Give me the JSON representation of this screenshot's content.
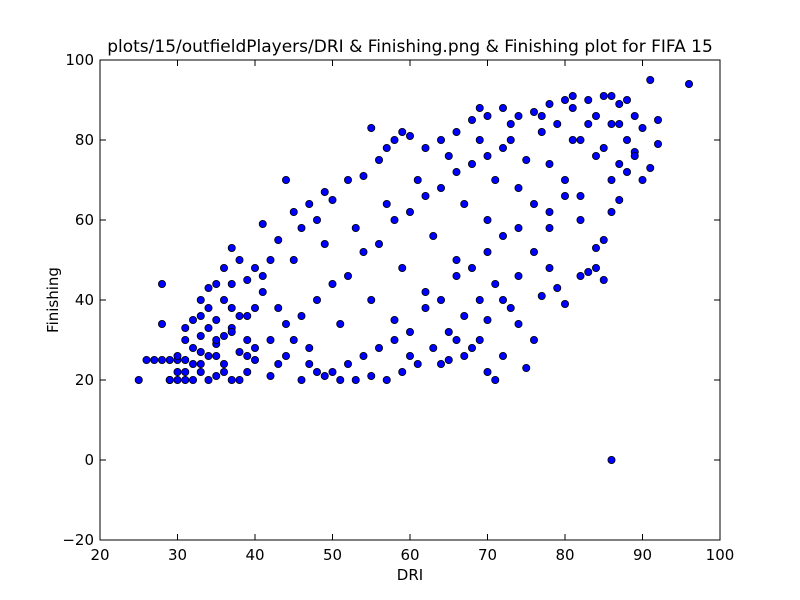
{
  "chart_data": {
    "type": "scatter",
    "title": "plots/15/outfieldPlayers/DRI & Finishing.png & Finishing plot for FIFA 15",
    "xlabel": "DRI",
    "ylabel": "Finishing",
    "xlim": [
      20,
      100
    ],
    "ylim": [
      -20,
      100
    ],
    "xticks": [
      20,
      30,
      40,
      50,
      60,
      70,
      80,
      90,
      100
    ],
    "yticks": [
      -20,
      0,
      20,
      40,
      60,
      80,
      100
    ],
    "xtick_labels": [
      "20",
      "30",
      "40",
      "50",
      "60",
      "70",
      "80",
      "90",
      "100"
    ],
    "ytick_labels": [
      "−20",
      "0",
      "20",
      "40",
      "60",
      "80",
      "100"
    ],
    "grid": false,
    "colors": {
      "marker_fill": "#0000ff",
      "marker_edge": "#000000"
    },
    "series": [
      {
        "points": [
          [
            25,
            20
          ],
          [
            26,
            25
          ],
          [
            27,
            25
          ],
          [
            28,
            25
          ],
          [
            28,
            34
          ],
          [
            28,
            44
          ],
          [
            29,
            20
          ],
          [
            29,
            25
          ],
          [
            30,
            20
          ],
          [
            30,
            22
          ],
          [
            30,
            25
          ],
          [
            30,
            26
          ],
          [
            31,
            20
          ],
          [
            31,
            25
          ],
          [
            31,
            30
          ],
          [
            31,
            33
          ],
          [
            32,
            20
          ],
          [
            32,
            24
          ],
          [
            32,
            28
          ],
          [
            32,
            35
          ],
          [
            33,
            22
          ],
          [
            33,
            27
          ],
          [
            33,
            31
          ],
          [
            33,
            36
          ],
          [
            34,
            20
          ],
          [
            34,
            26
          ],
          [
            34,
            33
          ],
          [
            34,
            38
          ],
          [
            34,
            43
          ],
          [
            35,
            21
          ],
          [
            35,
            29
          ],
          [
            35,
            35
          ],
          [
            35,
            44
          ],
          [
            36,
            24
          ],
          [
            36,
            31
          ],
          [
            36,
            40
          ],
          [
            36,
            48
          ],
          [
            37,
            20
          ],
          [
            37,
            33
          ],
          [
            37,
            38
          ],
          [
            37,
            53
          ],
          [
            38,
            27
          ],
          [
            38,
            36
          ],
          [
            38,
            50
          ],
          [
            39,
            22
          ],
          [
            39,
            30
          ],
          [
            39,
            45
          ],
          [
            40,
            25
          ],
          [
            40,
            38
          ],
          [
            40,
            48
          ],
          [
            41,
            59
          ],
          [
            42,
            50
          ],
          [
            43,
            55
          ],
          [
            44,
            70
          ],
          [
            45,
            62
          ],
          [
            46,
            58
          ],
          [
            47,
            64
          ],
          [
            48,
            60
          ],
          [
            49,
            67
          ],
          [
            50,
            65
          ],
          [
            52,
            70
          ],
          [
            54,
            71
          ],
          [
            55,
            83
          ],
          [
            56,
            75
          ],
          [
            57,
            78
          ],
          [
            58,
            80
          ],
          [
            59,
            82
          ],
          [
            60,
            81
          ],
          [
            62,
            78
          ],
          [
            64,
            80
          ],
          [
            66,
            82
          ],
          [
            68,
            85
          ],
          [
            69,
            88
          ],
          [
            70,
            86
          ],
          [
            72,
            88
          ],
          [
            74,
            86
          ],
          [
            76,
            87
          ],
          [
            78,
            89
          ],
          [
            80,
            90
          ],
          [
            81,
            91
          ],
          [
            83,
            90
          ],
          [
            85,
            91
          ],
          [
            86,
            91
          ],
          [
            87,
            89
          ],
          [
            88,
            90
          ],
          [
            91,
            95
          ],
          [
            96,
            94
          ],
          [
            92,
            85
          ],
          [
            92,
            79
          ],
          [
            91,
            73
          ],
          [
            89,
            77
          ],
          [
            88,
            72
          ],
          [
            87,
            65
          ],
          [
            86,
            62
          ],
          [
            85,
            55
          ],
          [
            84,
            53
          ],
          [
            83,
            47
          ],
          [
            82,
            46
          ],
          [
            80,
            39
          ],
          [
            79,
            43
          ],
          [
            78,
            48
          ],
          [
            77,
            41
          ],
          [
            75,
            23
          ],
          [
            72,
            26
          ],
          [
            71,
            20
          ],
          [
            70,
            22
          ],
          [
            68,
            28
          ],
          [
            66,
            30
          ],
          [
            65,
            25
          ],
          [
            64,
            24
          ],
          [
            86,
            0
          ],
          [
            85,
            45
          ],
          [
            84,
            48
          ],
          [
            82,
            60
          ],
          [
            80,
            66
          ],
          [
            78,
            58
          ],
          [
            76,
            52
          ],
          [
            74,
            46
          ],
          [
            72,
            40
          ],
          [
            70,
            35
          ],
          [
            69,
            30
          ],
          [
            67,
            26
          ],
          [
            60,
            26
          ],
          [
            58,
            35
          ],
          [
            62,
            42
          ],
          [
            66,
            50
          ],
          [
            70,
            60
          ],
          [
            74,
            68
          ],
          [
            78,
            74
          ],
          [
            82,
            80
          ],
          [
            86,
            84
          ],
          [
            89,
            86
          ],
          [
            90,
            83
          ],
          [
            88,
            80
          ],
          [
            84,
            76
          ],
          [
            80,
            70
          ],
          [
            76,
            64
          ],
          [
            72,
            56
          ],
          [
            68,
            48
          ],
          [
            64,
            40
          ],
          [
            60,
            32
          ],
          [
            56,
            28
          ],
          [
            52,
            24
          ],
          [
            48,
            22
          ],
          [
            44,
            26
          ],
          [
            42,
            30
          ],
          [
            46,
            36
          ],
          [
            50,
            44
          ],
          [
            54,
            52
          ],
          [
            58,
            60
          ],
          [
            62,
            66
          ],
          [
            66,
            72
          ],
          [
            70,
            76
          ],
          [
            73,
            80
          ],
          [
            77,
            82
          ],
          [
            79,
            84
          ],
          [
            81,
            80
          ],
          [
            83,
            84
          ],
          [
            85,
            78
          ],
          [
            87,
            74
          ],
          [
            89,
            76
          ],
          [
            90,
            70
          ],
          [
            86,
            70
          ],
          [
            82,
            66
          ],
          [
            78,
            62
          ],
          [
            74,
            58
          ],
          [
            70,
            52
          ],
          [
            66,
            46
          ],
          [
            62,
            38
          ],
          [
            58,
            30
          ],
          [
            54,
            26
          ],
          [
            50,
            22
          ],
          [
            46,
            20
          ],
          [
            42,
            21
          ],
          [
            38,
            20
          ],
          [
            36,
            22
          ],
          [
            40,
            28
          ],
          [
            44,
            34
          ],
          [
            48,
            40
          ],
          [
            52,
            46
          ],
          [
            56,
            54
          ],
          [
            60,
            62
          ],
          [
            64,
            68
          ],
          [
            68,
            74
          ],
          [
            72,
            78
          ],
          [
            75,
            75
          ],
          [
            71,
            70
          ],
          [
            67,
            64
          ],
          [
            63,
            56
          ],
          [
            59,
            48
          ],
          [
            55,
            40
          ],
          [
            51,
            34
          ],
          [
            47,
            28
          ],
          [
            43,
            24
          ],
          [
            39,
            26
          ],
          [
            35,
            30
          ],
          [
            33,
            40
          ],
          [
            37,
            44
          ],
          [
            41,
            46
          ],
          [
            45,
            50
          ],
          [
            49,
            54
          ],
          [
            53,
            58
          ],
          [
            57,
            64
          ],
          [
            61,
            70
          ],
          [
            65,
            76
          ],
          [
            69,
            80
          ],
          [
            73,
            84
          ],
          [
            77,
            86
          ],
          [
            81,
            88
          ],
          [
            84,
            86
          ],
          [
            87,
            84
          ],
          [
            76,
            30
          ],
          [
            74,
            34
          ],
          [
            73,
            38
          ],
          [
            71,
            44
          ],
          [
            69,
            40
          ],
          [
            67,
            36
          ],
          [
            65,
            32
          ],
          [
            63,
            28
          ],
          [
            61,
            24
          ],
          [
            59,
            22
          ],
          [
            57,
            20
          ],
          [
            55,
            21
          ],
          [
            53,
            20
          ],
          [
            51,
            20
          ],
          [
            49,
            21
          ],
          [
            47,
            24
          ],
          [
            45,
            30
          ],
          [
            43,
            38
          ],
          [
            41,
            42
          ],
          [
            39,
            36
          ],
          [
            37,
            32
          ],
          [
            35,
            26
          ],
          [
            33,
            24
          ],
          [
            31,
            22
          ],
          [
            29,
            20
          ]
        ]
      }
    ]
  }
}
